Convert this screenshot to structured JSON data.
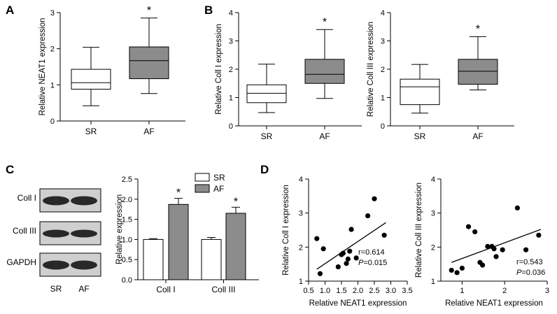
{
  "chart_data": [
    {
      "id": "A",
      "type": "boxplot",
      "panel_label": "A",
      "ylabel": "Relative NEAT1 expression",
      "ylim": [
        0,
        3
      ],
      "yticks": [
        "0",
        "1",
        "2",
        "3"
      ],
      "categories": [
        "SR",
        "AF"
      ],
      "boxes": [
        {
          "min": 0.42,
          "q1": 0.88,
          "median": 1.06,
          "q3": 1.43,
          "max": 2.04,
          "color": "#ffffff"
        },
        {
          "min": 0.76,
          "q1": 1.17,
          "median": 1.67,
          "q3": 2.05,
          "max": 2.85,
          "color": "#8c8c8c",
          "annotation": "*"
        }
      ]
    },
    {
      "id": "B1",
      "type": "boxplot",
      "panel_label": "B",
      "ylabel": "Relative Coll I expression",
      "ylim": [
        0,
        4
      ],
      "yticks": [
        "0",
        "1",
        "2",
        "3",
        "4"
      ],
      "categories": [
        "SR",
        "AF"
      ],
      "boxes": [
        {
          "min": 0.47,
          "q1": 0.82,
          "median": 1.15,
          "q3": 1.45,
          "max": 2.18,
          "color": "#ffffff"
        },
        {
          "min": 0.97,
          "q1": 1.5,
          "median": 1.82,
          "q3": 2.35,
          "max": 3.4,
          "color": "#8c8c8c",
          "annotation": "*"
        }
      ]
    },
    {
      "id": "B2",
      "type": "boxplot",
      "ylabel": "Relative Coll III expression",
      "ylim": [
        0,
        4
      ],
      "yticks": [
        "0",
        "1",
        "2",
        "3",
        "4"
      ],
      "categories": [
        "SR",
        "AF"
      ],
      "boxes": [
        {
          "min": 0.45,
          "q1": 0.75,
          "median": 1.38,
          "q3": 1.65,
          "max": 2.17,
          "color": "#ffffff"
        },
        {
          "min": 1.27,
          "q1": 1.47,
          "median": 1.93,
          "q3": 2.35,
          "max": 3.15,
          "color": "#8c8c8c",
          "annotation": "*"
        }
      ]
    },
    {
      "id": "C",
      "type": "bar",
      "panel_label": "C",
      "ylabel": "Relative expression",
      "ylim": [
        0,
        2.5
      ],
      "yticks": [
        "0.0",
        "0.5",
        "1.0",
        "1.5",
        "2.0",
        "2.5"
      ],
      "categories": [
        "Coll I",
        "Coll III"
      ],
      "series": [
        {
          "name": "SR",
          "values": [
            1.0,
            1.0
          ],
          "errors": [
            0.02,
            0.05
          ],
          "color": "#ffffff"
        },
        {
          "name": "AF",
          "values": [
            1.87,
            1.65
          ],
          "errors": [
            0.15,
            0.15
          ],
          "color": "#8c8c8c"
        }
      ],
      "annotations": [
        "*",
        "*"
      ],
      "legend": "top"
    },
    {
      "id": "D1",
      "type": "scatter",
      "panel_label": "D",
      "xlabel": "Relative NEAT1 expression",
      "ylabel": "Relative Coll I expression",
      "xlim": [
        0.5,
        3.5
      ],
      "ylim": [
        1,
        4
      ],
      "xticks": [
        "0.5",
        "1.0",
        "1.5",
        "2.0",
        "2.5",
        "3.0",
        "3.5"
      ],
      "yticks": [
        "1",
        "2",
        "3",
        "4"
      ],
      "x": [
        0.75,
        0.85,
        0.95,
        1.4,
        1.5,
        1.55,
        1.65,
        1.7,
        1.75,
        1.8,
        1.95,
        2.3,
        2.5,
        2.8
      ],
      "y": [
        2.25,
        1.22,
        1.95,
        1.42,
        1.78,
        1.82,
        1.52,
        1.65,
        1.88,
        2.52,
        1.68,
        2.92,
        3.42,
        2.35
      ],
      "fit": {
        "x": [
          0.75,
          2.85
        ],
        "y": [
          1.35,
          2.72
        ]
      },
      "stats_r": "r=0.614",
      "stats_p_label": "P",
      "stats_p_value": "=0.015"
    },
    {
      "id": "D2",
      "type": "scatter",
      "xlabel": "Relative NEAT1 expression",
      "ylabel": "Relative Coll III expression",
      "xlim": [
        0.5,
        3
      ],
      "ylim": [
        1,
        4
      ],
      "xticks": [
        "1",
        "2",
        "3"
      ],
      "yticks": [
        "1",
        "2",
        "3",
        "4"
      ],
      "x": [
        0.75,
        0.88,
        1.0,
        1.15,
        1.3,
        1.42,
        1.48,
        1.6,
        1.7,
        1.75,
        1.8,
        1.95,
        2.3,
        2.5,
        2.8
      ],
      "y": [
        1.32,
        1.25,
        1.38,
        2.6,
        2.45,
        1.55,
        1.47,
        2.02,
        2.02,
        1.95,
        1.72,
        1.92,
        3.15,
        1.92,
        2.35
      ],
      "fit": {
        "x": [
          0.75,
          2.85
        ],
        "y": [
          1.55,
          2.52
        ]
      },
      "stats_r": "r=0.543",
      "stats_p_label": "P",
      "stats_p_value": "=0.036"
    }
  ],
  "western_blot": {
    "rows": [
      "Coll I",
      "Coll III",
      "GAPDH"
    ],
    "lanes": [
      "SR",
      "AF"
    ]
  }
}
